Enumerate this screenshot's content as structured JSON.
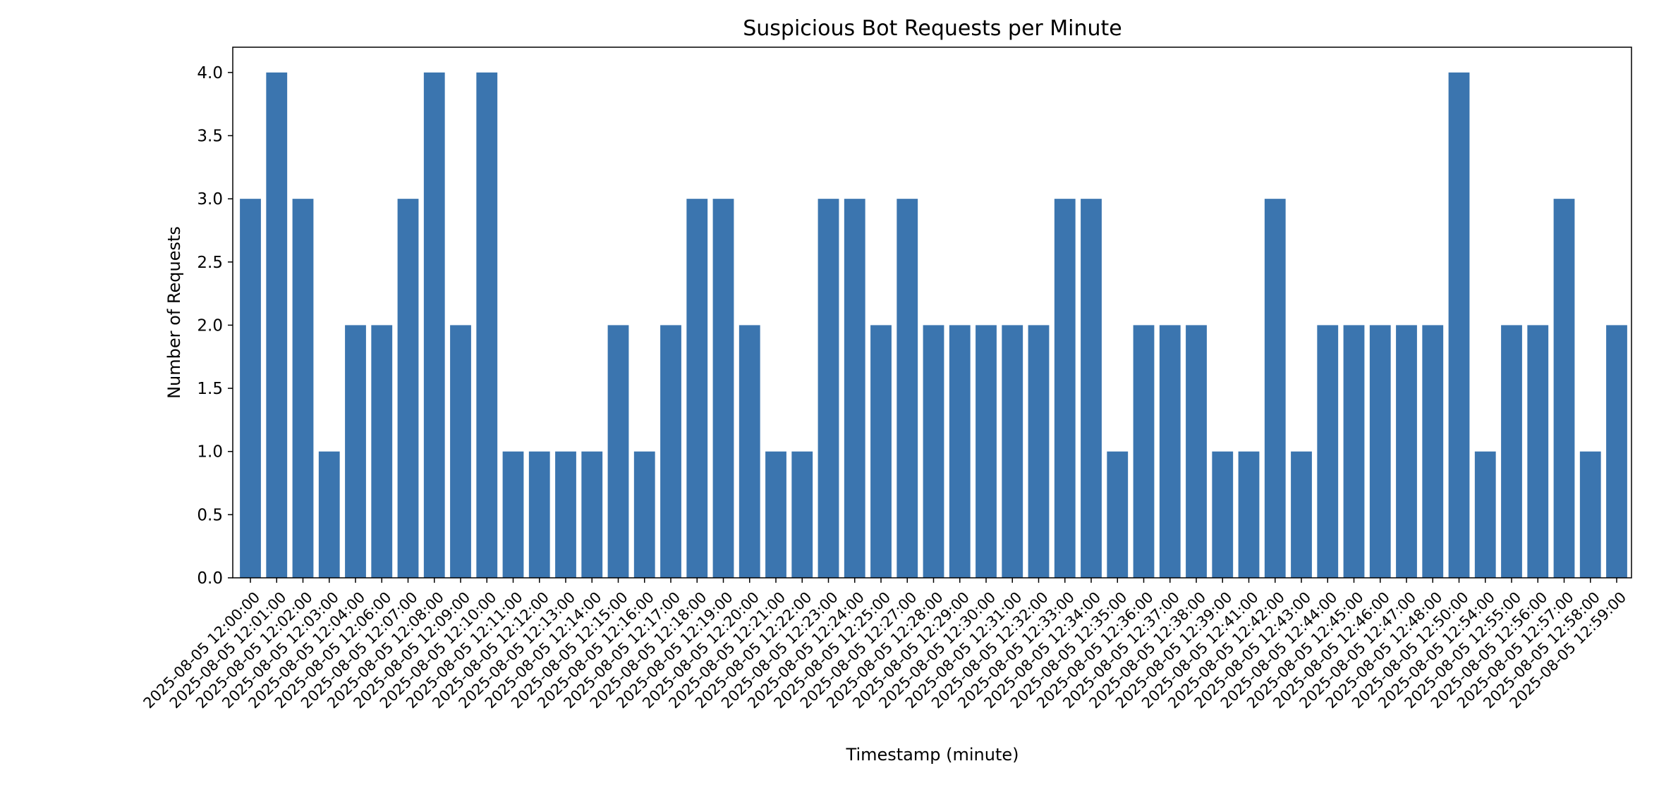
{
  "chart_data": {
    "type": "bar",
    "title": "Suspicious Bot Requests per Minute",
    "xlabel": "Timestamp (minute)",
    "ylabel": "Number of Requests",
    "ylim": [
      0,
      4.2
    ],
    "yticks": [
      "0.0",
      "0.5",
      "1.0",
      "1.5",
      "2.0",
      "2.5",
      "3.0",
      "3.5",
      "4.0"
    ],
    "grid": false,
    "bar_color": "#3b75af",
    "categories": [
      "2025-08-05 12:00:00",
      "2025-08-05 12:01:00",
      "2025-08-05 12:02:00",
      "2025-08-05 12:03:00",
      "2025-08-05 12:04:00",
      "2025-08-05 12:06:00",
      "2025-08-05 12:07:00",
      "2025-08-05 12:08:00",
      "2025-08-05 12:09:00",
      "2025-08-05 12:10:00",
      "2025-08-05 12:11:00",
      "2025-08-05 12:12:00",
      "2025-08-05 12:13:00",
      "2025-08-05 12:14:00",
      "2025-08-05 12:15:00",
      "2025-08-05 12:16:00",
      "2025-08-05 12:17:00",
      "2025-08-05 12:18:00",
      "2025-08-05 12:19:00",
      "2025-08-05 12:20:00",
      "2025-08-05 12:21:00",
      "2025-08-05 12:22:00",
      "2025-08-05 12:23:00",
      "2025-08-05 12:24:00",
      "2025-08-05 12:25:00",
      "2025-08-05 12:27:00",
      "2025-08-05 12:28:00",
      "2025-08-05 12:29:00",
      "2025-08-05 12:30:00",
      "2025-08-05 12:31:00",
      "2025-08-05 12:32:00",
      "2025-08-05 12:33:00",
      "2025-08-05 12:34:00",
      "2025-08-05 12:35:00",
      "2025-08-05 12:36:00",
      "2025-08-05 12:37:00",
      "2025-08-05 12:38:00",
      "2025-08-05 12:39:00",
      "2025-08-05 12:41:00",
      "2025-08-05 12:42:00",
      "2025-08-05 12:43:00",
      "2025-08-05 12:44:00",
      "2025-08-05 12:45:00",
      "2025-08-05 12:46:00",
      "2025-08-05 12:47:00",
      "2025-08-05 12:48:00",
      "2025-08-05 12:50:00",
      "2025-08-05 12:54:00",
      "2025-08-05 12:55:00",
      "2025-08-05 12:56:00",
      "2025-08-05 12:57:00",
      "2025-08-05 12:58:00",
      "2025-08-05 12:59:00"
    ],
    "values": [
      3,
      4,
      3,
      1,
      2,
      2,
      3,
      4,
      2,
      4,
      1,
      1,
      1,
      1,
      2,
      1,
      2,
      3,
      3,
      2,
      1,
      1,
      3,
      3,
      2,
      3,
      2,
      2,
      2,
      2,
      2,
      3,
      3,
      1,
      2,
      2,
      2,
      1,
      1,
      3,
      1,
      2,
      2,
      2,
      2,
      2,
      4,
      1,
      2,
      2,
      3,
      1,
      2
    ]
  }
}
